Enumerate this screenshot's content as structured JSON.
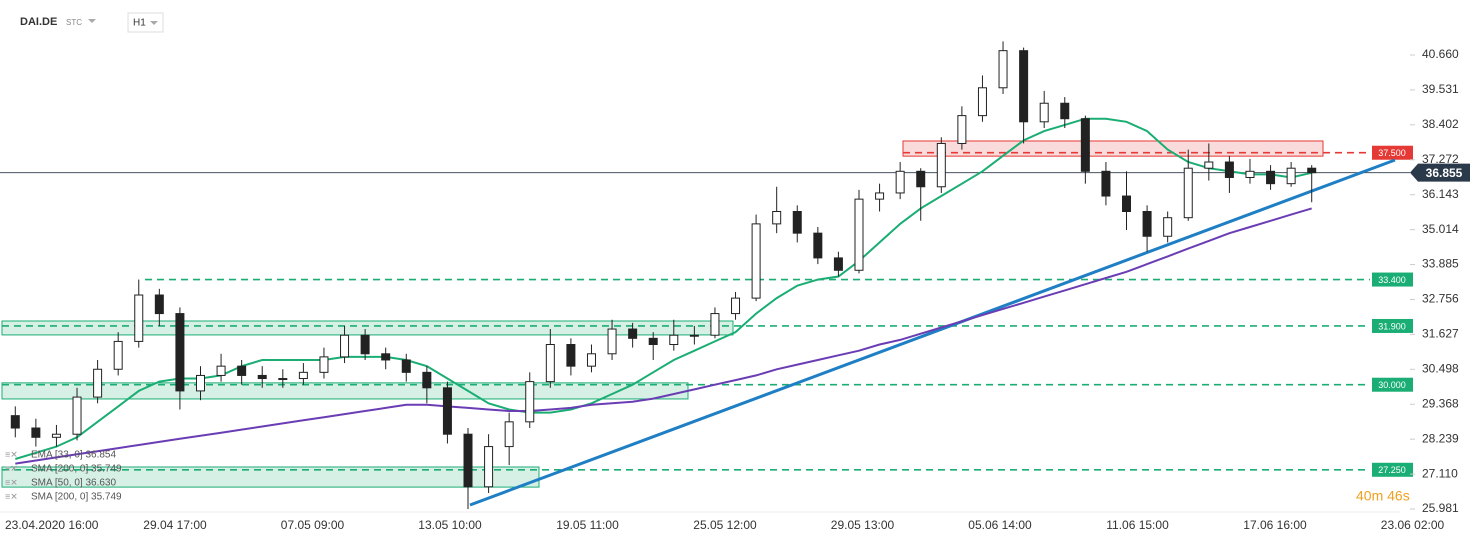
{
  "toolbar": {
    "symbol": "DAI.DE",
    "tag": "STC",
    "interval": "H1"
  },
  "chart_data": {
    "type": "candlestick",
    "ylim": [
      25.885,
      42.438
    ],
    "yticks": [
      {
        "value": 40.66,
        "label": "40.660"
      },
      39.531,
      38.402,
      37.272,
      36.143,
      35.014,
      33.885,
      32.756,
      31.627,
      30.498,
      29.368,
      28.239,
      {
        "value": 27.11,
        "label": "27.110"
      },
      25.981
    ],
    "x_labels": [
      "23.04.2020 16:00",
      "29.04 17:00",
      "07.05 09:00",
      "13.05 10:00",
      "19.05 11:00",
      "25.05 12:00",
      "29.05 13:00",
      "05.06 14:00",
      "11.06 15:00",
      "17.06 16:00",
      "23.06 02:00"
    ],
    "candles": {
      "open": [
        29.0,
        28.6,
        28.3,
        28.4,
        29.6,
        30.5,
        31.4,
        32.9,
        32.3,
        29.8,
        30.3,
        30.6,
        30.3,
        30.2,
        30.2,
        30.4,
        30.9,
        31.6,
        31.0,
        30.8,
        30.4,
        29.9,
        28.4,
        26.7,
        28.0,
        28.8,
        30.1,
        31.3,
        30.6,
        31.0,
        31.8,
        31.5,
        31.3,
        31.6,
        31.6,
        32.3,
        32.8,
        35.2,
        35.6,
        34.9,
        34.1,
        33.7,
        36.0,
        36.2,
        36.9,
        36.4,
        37.8,
        38.7,
        39.6,
        40.8,
        38.5,
        39.1,
        38.6,
        36.9,
        36.1,
        35.6,
        34.8,
        35.4,
        37.0,
        37.2,
        36.7,
        36.9,
        36.5,
        37.0
      ],
      "high": [
        29.3,
        28.9,
        28.7,
        29.9,
        30.8,
        31.7,
        33.4,
        33.1,
        32.5,
        30.6,
        31.0,
        30.8,
        30.6,
        30.5,
        30.7,
        31.2,
        31.9,
        31.8,
        31.2,
        31.0,
        30.6,
        30.1,
        28.6,
        28.4,
        29.1,
        30.4,
        31.8,
        31.5,
        31.3,
        32.1,
        32.0,
        31.7,
        32.1,
        31.9,
        32.5,
        33.0,
        35.5,
        36.4,
        35.8,
        35.1,
        34.3,
        36.3,
        36.5,
        37.2,
        37.0,
        38.0,
        39.0,
        40.0,
        41.1,
        40.9,
        39.5,
        39.3,
        38.7,
        37.2,
        36.9,
        35.8,
        35.6,
        37.6,
        37.8,
        37.4,
        37.3,
        37.1,
        37.2,
        37.1
      ],
      "low": [
        28.3,
        28.0,
        28.0,
        28.2,
        29.4,
        30.3,
        31.2,
        31.9,
        29.2,
        29.5,
        30.1,
        30.0,
        29.9,
        29.9,
        30.0,
        30.2,
        30.7,
        30.8,
        30.5,
        30.1,
        29.4,
        28.1,
        25.98,
        26.5,
        27.4,
        28.6,
        29.9,
        30.3,
        30.4,
        30.8,
        31.2,
        30.8,
        31.1,
        31.3,
        31.5,
        32.1,
        32.7,
        34.9,
        34.6,
        33.9,
        33.5,
        33.6,
        35.6,
        36.0,
        35.3,
        36.2,
        37.6,
        38.5,
        39.4,
        37.8,
        38.3,
        38.3,
        36.5,
        35.8,
        35.0,
        34.3,
        34.6,
        35.3,
        36.6,
        36.2,
        36.5,
        36.3,
        36.4,
        35.9
      ],
      "close": [
        28.6,
        28.3,
        28.4,
        29.6,
        30.5,
        31.4,
        32.9,
        32.3,
        29.8,
        30.3,
        30.6,
        30.3,
        30.2,
        30.2,
        30.4,
        30.9,
        31.6,
        31.0,
        30.8,
        30.4,
        29.9,
        28.4,
        26.7,
        28.0,
        28.8,
        30.1,
        31.3,
        30.6,
        31.0,
        31.8,
        31.5,
        31.3,
        31.6,
        31.6,
        32.3,
        32.8,
        35.2,
        35.6,
        34.9,
        34.1,
        33.7,
        36.0,
        36.2,
        36.9,
        36.4,
        37.8,
        38.7,
        39.6,
        40.8,
        38.5,
        39.1,
        38.6,
        36.9,
        36.1,
        35.6,
        34.8,
        35.4,
        37.0,
        37.2,
        36.7,
        36.9,
        36.5,
        37.0,
        36.855
      ]
    },
    "series": [
      {
        "name": "EMA [33, 0] 36.854",
        "color": "#1aad74",
        "values": [
          27.6,
          27.8,
          28.0,
          28.3,
          28.8,
          29.3,
          29.8,
          30.1,
          30.2,
          30.2,
          30.3,
          30.6,
          30.8,
          30.8,
          30.8,
          30.8,
          30.9,
          30.9,
          30.9,
          30.8,
          30.6,
          30.2,
          29.8,
          29.4,
          29.2,
          29.1,
          29.1,
          29.2,
          29.4,
          29.7,
          30.0,
          30.4,
          30.8,
          31.1,
          31.4,
          31.7,
          32.3,
          32.8,
          33.2,
          33.4,
          33.5,
          34.0,
          34.6,
          35.2,
          35.7,
          36.1,
          36.5,
          36.9,
          37.4,
          37.9,
          38.2,
          38.4,
          38.6,
          38.6,
          38.5,
          38.2,
          37.6,
          37.2,
          37.0,
          36.9,
          36.8,
          36.8,
          36.7,
          36.85
        ]
      },
      {
        "name": "SMA [200, 0] 35.749",
        "color": "#6a3db5",
        "values": [
          27.45,
          27.55,
          27.65,
          27.75,
          27.85,
          27.95,
          28.05,
          28.15,
          28.25,
          28.35,
          28.45,
          28.55,
          28.65,
          28.75,
          28.85,
          28.95,
          29.05,
          29.15,
          29.25,
          29.35,
          29.35,
          29.3,
          29.25,
          29.2,
          29.15,
          29.15,
          29.2,
          29.25,
          29.35,
          29.4,
          29.45,
          29.55,
          29.7,
          29.85,
          30.0,
          30.15,
          30.3,
          30.5,
          30.65,
          30.8,
          30.95,
          31.1,
          31.3,
          31.45,
          31.65,
          31.85,
          32.05,
          32.25,
          32.45,
          32.65,
          32.85,
          33.05,
          33.25,
          33.45,
          33.65,
          33.9,
          34.15,
          34.4,
          34.65,
          34.9,
          35.1,
          35.3,
          35.5,
          35.7
        ]
      }
    ],
    "inactive_indicators": [
      "SMA [50, 0] 36.630",
      "SMA [200, 0] 35.749"
    ],
    "zones": [
      {
        "low": 31.61,
        "high": 32.06,
        "color": "#1aad74"
      },
      {
        "low": 29.54,
        "high": 30.06,
        "color": "#1aad74"
      },
      {
        "low": 26.69,
        "high": 27.34,
        "color": "#1aad74"
      },
      {
        "low": 37.39,
        "high": 37.88,
        "color": "#e53935"
      }
    ],
    "levels": [
      {
        "value": 37.5,
        "label": "37.500",
        "color": "#e53935"
      },
      {
        "value": 33.4,
        "label": "33.400",
        "color": "#1aad74"
      },
      {
        "value": 31.9,
        "label": "31.900",
        "color": "#1aad74"
      },
      {
        "value": 30.0,
        "label": "30.000",
        "color": "#1aad74"
      },
      {
        "value": 27.25,
        "label": "27.250",
        "color": "#1aad74"
      }
    ],
    "trendline": {
      "values": [
        26.111,
        37.265
      ],
      "color": "#1f7fc4"
    },
    "last_price": 36.855,
    "timer": "40m 46s"
  }
}
